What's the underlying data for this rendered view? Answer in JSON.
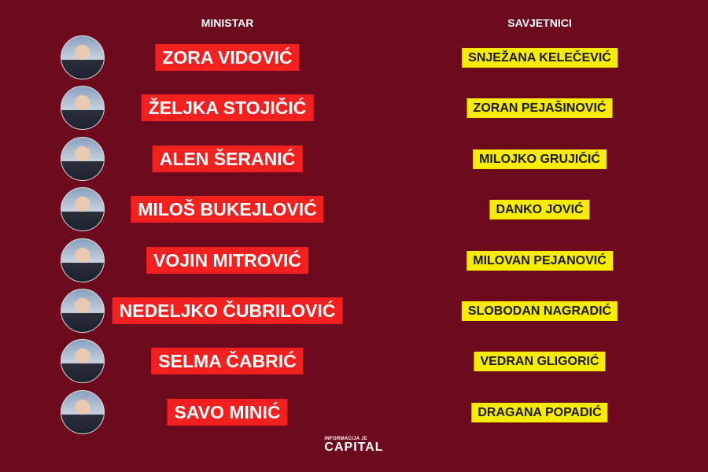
{
  "headers": {
    "minister": "MINISTAR",
    "advisors": "SAVJETNICI"
  },
  "rows": [
    {
      "minister": "ZORA VIDOVIĆ",
      "advisor": "SNJEŽANA KELEČEVIĆ"
    },
    {
      "minister": "ŽELJKA STOJIČIĆ",
      "advisor": "ZORAN PEJAŠINOVIĆ"
    },
    {
      "minister": "ALEN ŠERANIĆ",
      "advisor": "MILOJKO GRUJIČIĆ"
    },
    {
      "minister": "MILOŠ BUKEJLOVIĆ",
      "advisor": "DANKO JOVIĆ"
    },
    {
      "minister": "VOJIN MITROVIĆ",
      "advisor": "MILOVAN PEJANOVIĆ"
    },
    {
      "minister": "NEDELJKO ČUBRILOVIĆ",
      "advisor": "SLOBODAN NAGRADIĆ"
    },
    {
      "minister": "SELMA ČABRIĆ",
      "advisor": "VEDRAN GLIGORIĆ"
    },
    {
      "minister": "SAVO MINIĆ",
      "advisor": "DRAGANA POPADIĆ"
    }
  ],
  "logo": {
    "tagline": "INFORMACIJA JE",
    "name": "CAPITAL"
  },
  "colors": {
    "background": "#6d0a1d",
    "minister_box": "#f2201e",
    "advisor_box": "#f7eb00"
  }
}
